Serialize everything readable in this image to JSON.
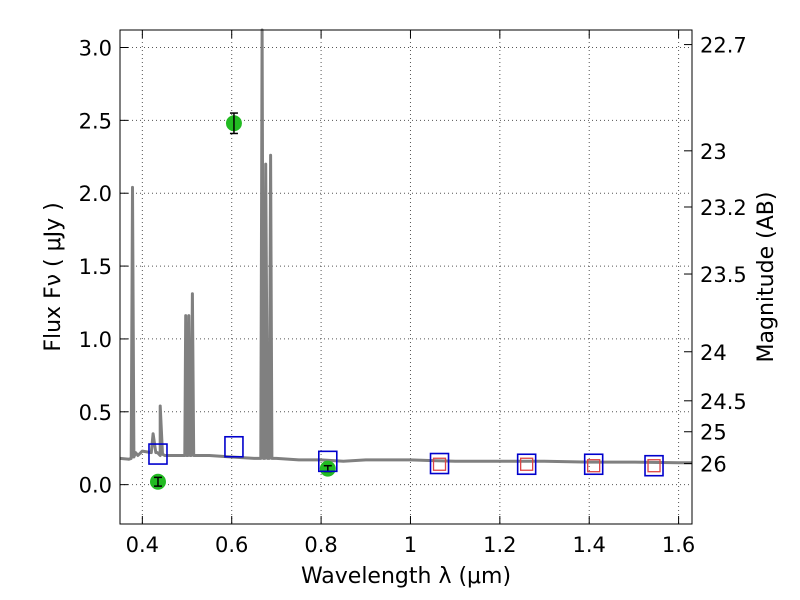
{
  "chart_data": {
    "type": "line",
    "title": "",
    "xlabel": "Wavelength  λ (μm)",
    "ylabel_left": "Flux  Fν  ( μJy )",
    "ylabel_right": "Magnitude (AB)",
    "xlim": [
      0.35,
      1.63
    ],
    "ylim": [
      -0.27,
      3.12
    ],
    "grid": true,
    "x_ticks": [
      {
        "value": 0.4,
        "label": "0.4"
      },
      {
        "value": 0.6,
        "label": "0.6"
      },
      {
        "value": 0.8,
        "label": "0.8"
      },
      {
        "value": 1.0,
        "label": "1"
      },
      {
        "value": 1.2,
        "label": "1.2"
      },
      {
        "value": 1.4,
        "label": "1.4"
      },
      {
        "value": 1.6,
        "label": "1.6"
      }
    ],
    "y_ticks": [
      {
        "value": 0.0,
        "label": "0.0"
      },
      {
        "value": 0.5,
        "label": "0.5"
      },
      {
        "value": 1.0,
        "label": "1.0"
      },
      {
        "value": 1.5,
        "label": "1.5"
      },
      {
        "value": 2.0,
        "label": "2.0"
      },
      {
        "value": 2.5,
        "label": "2.5"
      },
      {
        "value": 3.0,
        "label": "3.0"
      }
    ],
    "right_ticks": [
      {
        "mag": 22.7,
        "label": "22.7"
      },
      {
        "mag": 23.0,
        "label": "23"
      },
      {
        "mag": 23.2,
        "label": "23.2"
      },
      {
        "mag": 23.5,
        "label": "23.5"
      },
      {
        "mag": 24.0,
        "label": "24"
      },
      {
        "mag": 24.5,
        "label": "24.5"
      },
      {
        "mag": 25.0,
        "label": "25"
      },
      {
        "mag": 26.0,
        "label": "26"
      }
    ],
    "colors": {
      "model": "#808080",
      "observed": "#22bb22",
      "model_phot": "#0000cc",
      "model_phot_inner": "#dd4444",
      "errorbar": "#000000",
      "grid": "#555555"
    },
    "series": [
      {
        "name": "model_spectrum",
        "kind": "line",
        "x": [
          0.35,
          0.37,
          0.375,
          0.378,
          0.381,
          0.385,
          0.39,
          0.4,
          0.42,
          0.424,
          0.43,
          0.434,
          0.44,
          0.44,
          0.445,
          0.45,
          0.47,
          0.495,
          0.497,
          0.499,
          0.502,
          0.504,
          0.507,
          0.509,
          0.512,
          0.515,
          0.52,
          0.55,
          0.6,
          0.65,
          0.665,
          0.668,
          0.671,
          0.674,
          0.676,
          0.68,
          0.684,
          0.687,
          0.69,
          0.7,
          0.75,
          0.8,
          0.85,
          0.9,
          0.95,
          1.0,
          1.05,
          1.1,
          1.2,
          1.3,
          1.4,
          1.5,
          1.6,
          1.63
        ],
        "y": [
          0.18,
          0.175,
          0.18,
          2.04,
          0.19,
          0.22,
          0.2,
          0.23,
          0.22,
          0.35,
          0.22,
          0.22,
          0.2,
          0.54,
          0.21,
          0.2,
          0.2,
          0.2,
          1.16,
          0.2,
          0.2,
          1.16,
          0.2,
          0.2,
          1.31,
          0.2,
          0.2,
          0.2,
          0.19,
          0.18,
          0.18,
          3.12,
          0.18,
          0.18,
          2.2,
          0.18,
          0.18,
          2.26,
          0.18,
          0.18,
          0.17,
          0.17,
          0.16,
          0.17,
          0.17,
          0.17,
          0.165,
          0.16,
          0.16,
          0.16,
          0.155,
          0.155,
          0.15,
          0.15
        ]
      },
      {
        "name": "observed_photometry",
        "kind": "scatter_errorbar",
        "x": [
          0.435,
          0.605,
          0.815
        ],
        "y": [
          0.02,
          2.48,
          0.11
        ],
        "yerr": [
          0.03,
          0.07,
          0.02
        ]
      },
      {
        "name": "model_photometry",
        "kind": "scatter_square",
        "x": [
          0.435,
          0.605,
          0.815,
          1.065,
          1.26,
          1.41,
          1.545
        ],
        "y": [
          0.21,
          0.26,
          0.16,
          0.145,
          0.14,
          0.14,
          0.13
        ]
      },
      {
        "name": "model_photometry_inner",
        "kind": "scatter_square_small",
        "x": [
          1.065,
          1.26,
          1.41,
          1.545
        ],
        "y": [
          0.14,
          0.14,
          0.13,
          0.13
        ]
      }
    ]
  }
}
